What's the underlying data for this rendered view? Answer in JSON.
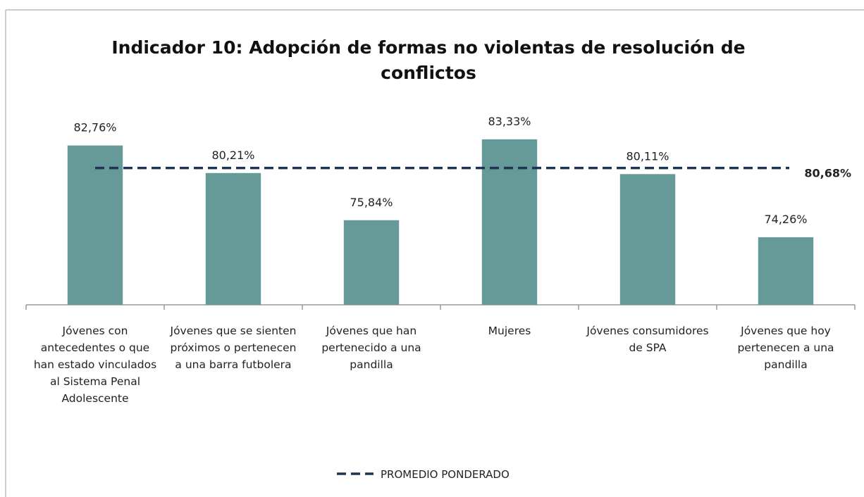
{
  "chart_data": {
    "type": "bar",
    "title": "Indicador 10: Adopción de formas no violentas de resolución de conflictos",
    "categories": [
      "Jóvenes con antecedentes o que han estado vinculados al Sistema Penal Adolescente",
      "Jóvenes que se sienten próximos o pertenecen a una barra futbolera",
      "Jóvenes que han pertenecido a una pandilla",
      "Mujeres",
      "Jóvenes consumidores de SPA",
      "Jóvenes que hoy pertenecen a una pandilla"
    ],
    "values": [
      82.76,
      80.21,
      75.84,
      83.33,
      80.11,
      74.26
    ],
    "value_labels": [
      "82,76%",
      "80,21%",
      "75,84%",
      "83,33%",
      "80,11%",
      "74,26%"
    ],
    "color": "#669a99",
    "ylim": [
      68,
      86
    ],
    "reference_line": {
      "name": "PROMEDIO PONDERADO",
      "value": 80.68,
      "value_label": "80,68%",
      "color": "#1f3352"
    }
  }
}
